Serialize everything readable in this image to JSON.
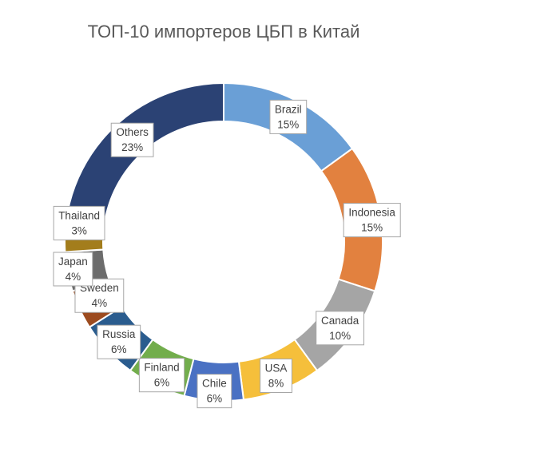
{
  "chart_data": {
    "type": "pie",
    "variant": "doughnut",
    "title": "ТОП-10 импортеров ЦБП в Китай",
    "legend": "none",
    "start_angle_deg": 0,
    "direction": "clockwise",
    "slices": [
      {
        "name": "Brazil",
        "value": 15,
        "label": "15%",
        "color": "#6a9fd6"
      },
      {
        "name": "Indonesia",
        "value": 15,
        "label": "15%",
        "color": "#e2813f"
      },
      {
        "name": "Canada",
        "value": 10,
        "label": "10%",
        "color": "#a5a5a5"
      },
      {
        "name": "USA",
        "value": 8,
        "label": "8%",
        "color": "#f5bf3b"
      },
      {
        "name": "Chile",
        "value": 6,
        "label": "6%",
        "color": "#4a71c3"
      },
      {
        "name": "Finland",
        "value": 6,
        "label": "6%",
        "color": "#72ad4c"
      },
      {
        "name": "Russia",
        "value": 6,
        "label": "6%",
        "color": "#2a5c8e"
      },
      {
        "name": "Sweden",
        "value": 4,
        "label": "4%",
        "color": "#9c4b1f"
      },
      {
        "name": "Japan",
        "value": 4,
        "label": "4%",
        "color": "#6c6c6c"
      },
      {
        "name": "Thailand",
        "value": 3,
        "label": "3%",
        "color": "#a37d1c"
      },
      {
        "name": "Others",
        "value": 23,
        "label": "23%",
        "color": "#2b4274"
      }
    ]
  }
}
